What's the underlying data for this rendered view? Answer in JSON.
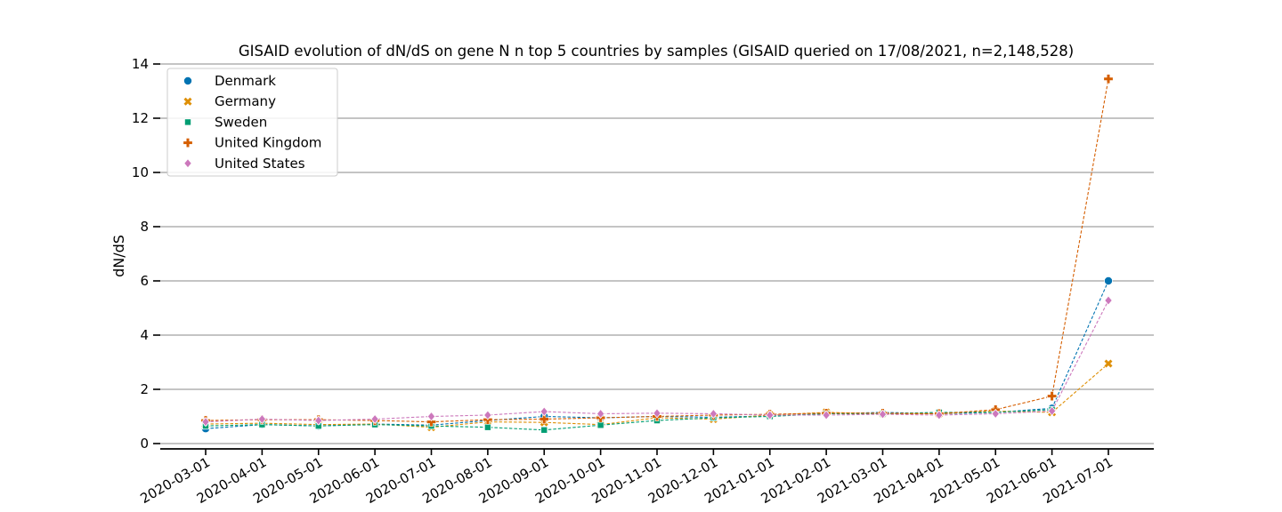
{
  "chart_data": {
    "type": "line",
    "title": "GISAID evolution of dN/dS on gene N n top 5 countries by samples (GISAID queried on 17/08/2021, n=2,148,528)",
    "xlabel": "",
    "ylabel": "dN/dS",
    "ylim": [
      0,
      14
    ],
    "yticks": [
      0,
      2,
      4,
      6,
      8,
      10,
      12,
      14
    ],
    "grid": "horizontal",
    "legend_position": "top-left",
    "categories": [
      "2020-03-01",
      "2020-04-01",
      "2020-05-01",
      "2020-06-01",
      "2020-07-01",
      "2020-08-01",
      "2020-09-01",
      "2020-10-01",
      "2020-11-01",
      "2020-12-01",
      "2021-01-01",
      "2021-02-01",
      "2021-03-01",
      "2021-04-01",
      "2021-05-01",
      "2021-06-01",
      "2021-07-01"
    ],
    "series": [
      {
        "name": "Denmark",
        "color": "#0173b2",
        "marker": "circle",
        "values": [
          0.55,
          0.7,
          0.65,
          0.72,
          0.68,
          0.85,
          1.0,
          0.95,
          1.0,
          0.97,
          1.02,
          1.1,
          1.15,
          1.1,
          1.15,
          1.3,
          6.0
        ]
      },
      {
        "name": "Germany",
        "color": "#de8f05",
        "marker": "x",
        "values": [
          0.72,
          0.75,
          0.7,
          0.72,
          0.6,
          0.8,
          0.78,
          0.7,
          0.95,
          0.9,
          1.05,
          1.15,
          1.1,
          1.1,
          1.2,
          1.15,
          2.95
        ]
      },
      {
        "name": "Sweden",
        "color": "#029e73",
        "marker": "square",
        "values": [
          0.65,
          0.7,
          0.65,
          0.7,
          0.65,
          0.6,
          0.5,
          0.68,
          0.85,
          0.95,
          1.0,
          1.1,
          1.1,
          1.15,
          1.15,
          1.25,
          null
        ]
      },
      {
        "name": "United Kingdom",
        "color": "#d55e00",
        "marker": "plus",
        "values": [
          0.85,
          0.88,
          0.88,
          0.85,
          0.8,
          0.88,
          0.9,
          0.95,
          1.0,
          1.05,
          1.08,
          1.12,
          1.12,
          1.1,
          1.25,
          1.75,
          13.45
        ]
      },
      {
        "name": "United States",
        "color": "#cc78bc",
        "marker": "diamond",
        "values": [
          0.8,
          0.9,
          0.85,
          0.9,
          1.0,
          1.05,
          1.18,
          1.1,
          1.12,
          1.1,
          1.05,
          1.05,
          1.08,
          1.05,
          1.1,
          1.2,
          5.28
        ]
      }
    ]
  }
}
